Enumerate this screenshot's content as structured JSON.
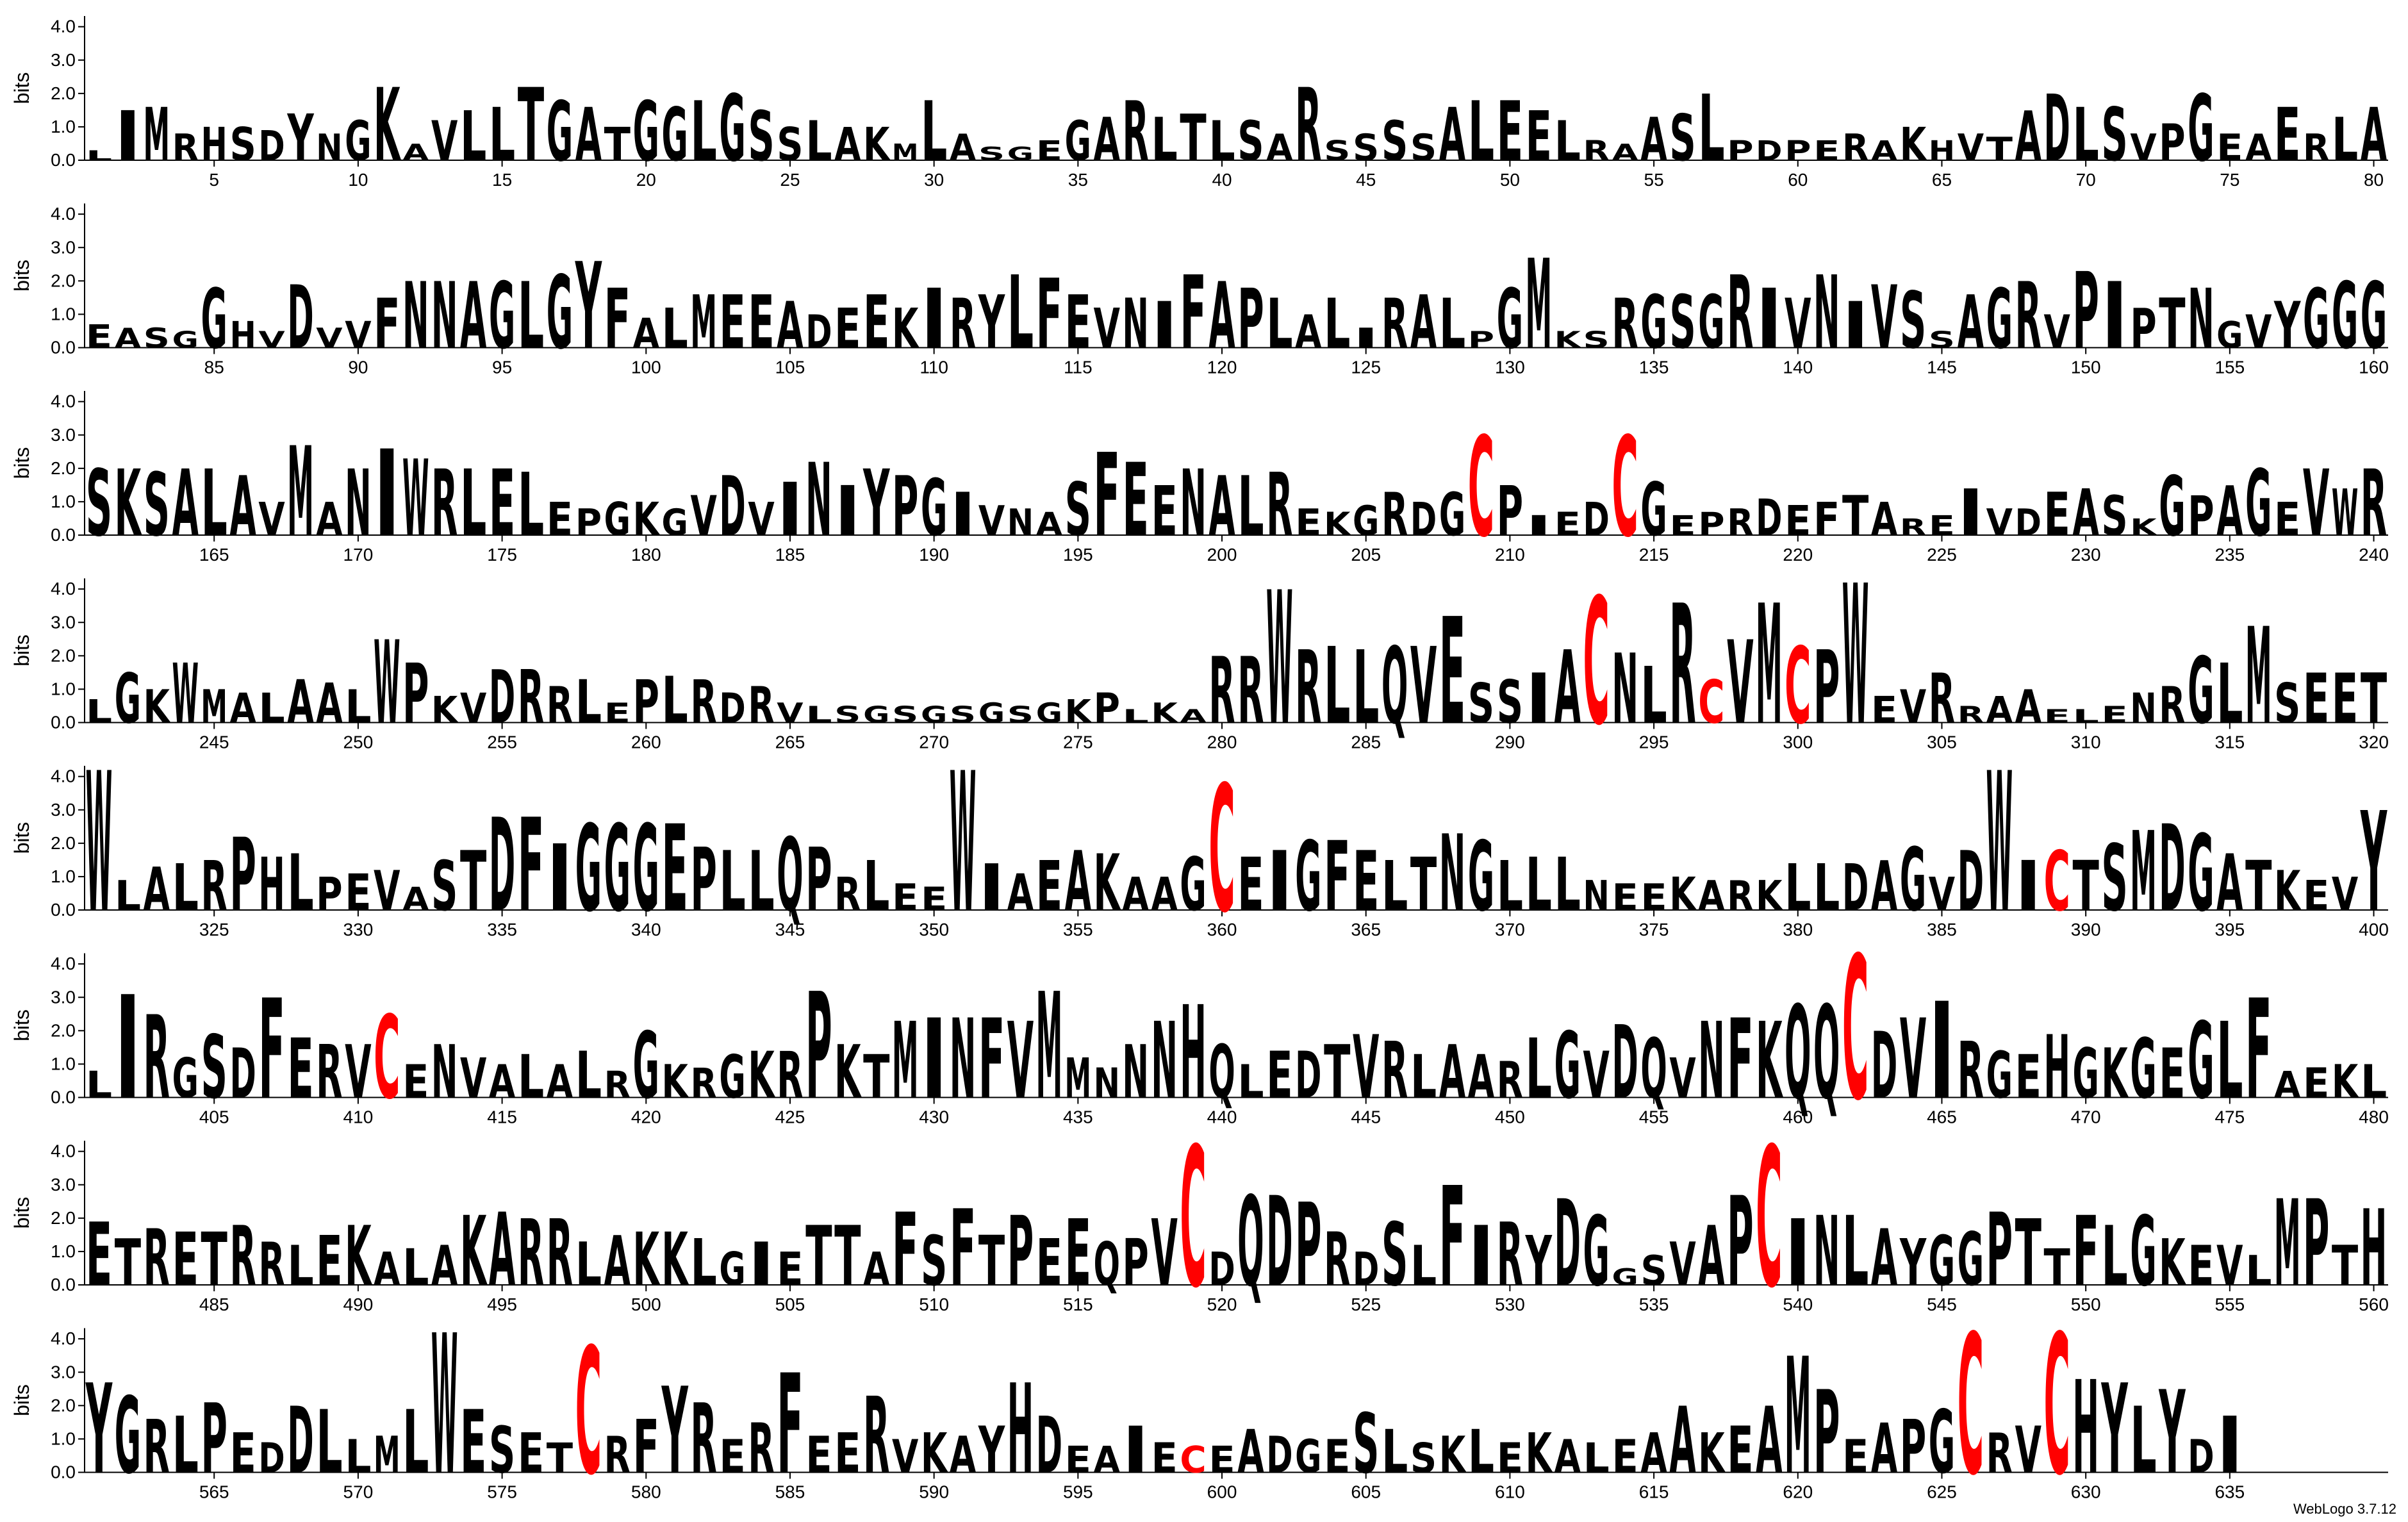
{
  "chart_data": {
    "type": "logo",
    "ylabel": "bits",
    "credit": "WebLogo 3.7.12",
    "ylim": [
      0,
      4.32
    ],
    "yticks": [
      {
        "value": 0,
        "label": "0.0"
      },
      {
        "value": 1,
        "label": "1.0"
      },
      {
        "value": 2,
        "label": "2.0"
      },
      {
        "value": 3,
        "label": "3.0"
      },
      {
        "value": 4,
        "label": "4.0"
      }
    ],
    "color": "#000000",
    "letter_colors": {
      "C": "#ff0000"
    },
    "rows": [
      {
        "xlim": [
          0.5,
          80.5
        ],
        "xticks": [
          5,
          10,
          15,
          20,
          25,
          30,
          35,
          40,
          45,
          50,
          55,
          60,
          65,
          70,
          75,
          80
        ],
        "letters": "LIMRHSDYNGKAVLLTGATGGLGSSLAKMLASGEGARLTLSARSSSSALEELRAASLPDPERAKHVTADLSVPGEAERLA",
        "heights": [
          0.3,
          1.5,
          1.6,
          0.8,
          1.0,
          1.0,
          0.9,
          1.4,
          0.8,
          1.2,
          2.2,
          0.5,
          1.2,
          1.5,
          1.6,
          2.2,
          1.8,
          1.6,
          1.0,
          1.8,
          1.6,
          1.8,
          2.0,
          1.5,
          1.0,
          1.2,
          1.0,
          1.0,
          0.5,
          1.8,
          0.8,
          0.4,
          0.4,
          0.6,
          1.2,
          1.3,
          1.8,
          1.3,
          1.4,
          1.2,
          1.2,
          0.8,
          2.2,
          0.6,
          0.8,
          1.2,
          0.8,
          1.6,
          1.8,
          1.8,
          1.5,
          1.2,
          0.6,
          0.5,
          1.3,
          1.4,
          2.0,
          0.6,
          0.6,
          0.6,
          0.6,
          0.8,
          0.6,
          1.0,
          0.6,
          0.8,
          0.7,
          1.5,
          2.0,
          1.6,
          1.6,
          0.8,
          1.1,
          2.0,
          0.8,
          0.8,
          1.6,
          0.8,
          1.3,
          1.6
        ]
      },
      {
        "xlim": [
          80.5,
          160.5
        ],
        "xticks": [
          85,
          90,
          95,
          100,
          105,
          110,
          115,
          120,
          125,
          130,
          135,
          140,
          145,
          150,
          155,
          160
        ],
        "letters": "EASGGHVDVVFNNAGLGYFALMEEADEEKIRYLFEVNIFAPLALIRALPGMKSRGSGRIVNIVSSAGRVPIPTNGVYGGG",
        "heights": [
          0.7,
          0.6,
          0.6,
          0.5,
          1.8,
          0.8,
          0.5,
          1.9,
          0.6,
          0.8,
          1.5,
          2.0,
          2.0,
          2.0,
          2.0,
          2.0,
          2.2,
          2.6,
          1.8,
          0.9,
          1.2,
          1.6,
          1.6,
          1.6,
          1.4,
          1.0,
          1.2,
          1.6,
          1.2,
          1.8,
          1.5,
          1.6,
          2.2,
          2.1,
          1.6,
          1.2,
          1.5,
          1.4,
          2.2,
          2.0,
          1.8,
          1.5,
          1.0,
          1.5,
          0.6,
          1.5,
          1.6,
          1.5,
          0.5,
          1.8,
          2.7,
          0.5,
          0.5,
          1.5,
          1.6,
          1.6,
          1.6,
          2.2,
          1.8,
          1.5,
          2.2,
          1.4,
          1.9,
          1.7,
          0.5,
          1.6,
          1.8,
          2.0,
          1.0,
          2.3,
          2.0,
          1.2,
          1.5,
          1.8,
          0.8,
          1.0,
          1.4,
          1.8,
          2.0,
          2.0
        ]
      },
      {
        "xlim": [
          160.5,
          240.5
        ],
        "xticks": [
          165,
          170,
          175,
          180,
          185,
          190,
          195,
          200,
          205,
          210,
          215,
          220,
          225,
          230,
          235,
          240
        ],
        "letters": "SKSALAVMANIWRLELEPGKGVDVINIYPGIVNASFEENALREKGRDGCPIEDCGEPRDEFTAREIVDEASKGPAGEVWR",
        "heights": [
          2.0,
          2.0,
          1.9,
          2.0,
          2.0,
          1.8,
          1.0,
          2.7,
          1.0,
          2.0,
          2.6,
          2.3,
          2.0,
          2.0,
          2.0,
          1.9,
          1.0,
          0.8,
          1.0,
          1.0,
          0.8,
          1.2,
          1.8,
          1.0,
          1.6,
          2.2,
          1.5,
          2.0,
          1.8,
          1.7,
          1.3,
          0.9,
          0.8,
          0.7,
          1.6,
          2.5,
          2.2,
          1.5,
          2.0,
          1.8,
          1.8,
          1.9,
          0.8,
          0.7,
          0.9,
          1.3,
          1.0,
          1.3,
          3.0,
          1.5,
          0.6,
          0.7,
          1.0,
          3.0,
          1.6,
          0.6,
          0.7,
          0.8,
          1.1,
          0.9,
          1.0,
          1.2,
          1.0,
          0.5,
          0.6,
          1.4,
          0.8,
          0.8,
          1.3,
          1.4,
          1.2,
          0.5,
          1.8,
          1.2,
          1.5,
          2.0,
          1.0,
          2.0,
          1.4,
          2.0
        ]
      },
      {
        "xlim": [
          240.5,
          320.5
        ],
        "xticks": [
          245,
          250,
          255,
          260,
          265,
          270,
          275,
          280,
          285,
          290,
          295,
          300,
          305,
          310,
          315,
          320
        ],
        "letters": "LGKWMALAALWPKVDRRLEPLRDRVLSGSGSGSGKPLKARRWRLLQVESSIACNLRCVMCPWEVRRAAELENRGLMSEET",
        "heights": [
          0.7,
          1.5,
          1.0,
          1.8,
          1.0,
          0.9,
          0.9,
          1.3,
          1.2,
          1.0,
          2.5,
          1.8,
          0.8,
          0.9,
          1.6,
          1.6,
          1.1,
          1.3,
          0.6,
          1.3,
          1.4,
          1.3,
          0.9,
          1.1,
          0.6,
          0.5,
          0.5,
          0.5,
          0.5,
          0.5,
          0.5,
          0.6,
          0.5,
          0.6,
          0.7,
          0.9,
          0.4,
          0.6,
          0.4,
          2.0,
          2.0,
          4.0,
          2.2,
          2.3,
          2.2,
          2.3,
          2.3,
          3.2,
          1.2,
          1.3,
          1.5,
          2.2,
          3.8,
          2.1,
          1.7,
          3.6,
          1.3,
          2.5,
          3.6,
          2.3,
          2.2,
          4.2,
          0.8,
          1.0,
          1.5,
          0.5,
          0.8,
          1.0,
          0.4,
          0.4,
          0.5,
          0.9,
          1.1,
          2.0,
          1.8,
          2.9,
          1.2,
          1.5,
          1.5,
          1.5
        ]
      },
      {
        "xlim": [
          320.5,
          400.5
        ],
        "xticks": [
          325,
          330,
          335,
          340,
          345,
          350,
          355,
          360,
          365,
          370,
          375,
          380,
          385,
          390,
          395,
          400
        ],
        "letters": "WLALRPHLPEVASTDFIGGGEPLLQPRLEEWIAEAKAAGCEIGFELTNGLLLNEEKARKLLDAGVDWICTSMDGATKEVY",
        "heights": [
          4.2,
          0.9,
          1.3,
          1.4,
          1.5,
          2.2,
          1.6,
          1.7,
          1.0,
          1.1,
          1.2,
          0.7,
          1.5,
          1.8,
          2.8,
          2.8,
          2.0,
          2.6,
          2.6,
          2.6,
          2.6,
          1.9,
          1.8,
          1.8,
          2.2,
          1.9,
          1.0,
          1.5,
          0.8,
          0.7,
          4.2,
          1.4,
          1.1,
          1.5,
          1.8,
          1.7,
          1.0,
          1.0,
          1.6,
          3.8,
          1.6,
          1.8,
          2.1,
          2.1,
          1.8,
          1.5,
          1.6,
          2.3,
          2.1,
          1.5,
          1.6,
          1.6,
          0.9,
          0.8,
          0.8,
          1.0,
          0.9,
          0.9,
          0.9,
          1.4,
          1.4,
          1.4,
          1.5,
          1.9,
          1.0,
          1.8,
          4.2,
          1.5,
          1.8,
          1.5,
          2.0,
          2.4,
          2.6,
          2.3,
          1.7,
          1.5,
          1.2,
          0.9,
          1.0,
          3.0
        ]
      },
      {
        "xlim": [
          400.5,
          480.5
        ],
        "xticks": [
          405,
          410,
          415,
          420,
          425,
          430,
          435,
          440,
          445,
          450,
          455,
          460,
          465,
          470,
          475,
          480
        ],
        "letters": "LIRGSDFERVCENVALALRGKRGKRPKTMINFVMMNNNHQLEDTVRLAARLGVDQVNFKQQCDVIRGEHGKGEGLFAEKL",
        "heights": [
          0.8,
          3.1,
          2.5,
          1.2,
          1.9,
          1.5,
          3.0,
          1.8,
          1.6,
          1.6,
          2.5,
          1.0,
          1.6,
          1.2,
          1.0,
          1.3,
          1.0,
          1.4,
          0.8,
          2.0,
          1.0,
          0.9,
          1.3,
          1.4,
          1.4,
          3.2,
          1.6,
          1.3,
          2.3,
          2.4,
          2.4,
          2.4,
          2.3,
          3.2,
          1.2,
          0.9,
          1.6,
          2.3,
          2.8,
          1.6,
          1.0,
          1.4,
          1.4,
          1.6,
          1.9,
          1.7,
          1.3,
          1.6,
          1.3,
          1.1,
          1.8,
          2.0,
          1.4,
          2.2,
          1.8,
          1.2,
          2.3,
          2.4,
          2.3,
          2.8,
          2.8,
          4.3,
          2.0,
          2.4,
          2.9,
          1.7,
          1.4,
          1.3,
          1.9,
          1.5,
          1.5,
          1.8,
          1.5,
          2.3,
          2.3,
          3.0,
          0.8,
          0.9,
          1.0,
          1.0
        ]
      },
      {
        "xlim": [
          480.5,
          560.5
        ],
        "xticks": [
          485,
          490,
          495,
          500,
          505,
          510,
          515,
          520,
          525,
          530,
          535,
          540,
          545,
          550,
          555,
          560
        ],
        "letters": "ETRETRRLEKALAKARRLAKKLGIETTAFSFTPEEQPVCDQDPRDSLFIRYDGGSVAPCINLAYGGPTTFLGKEVLMPTH",
        "heights": [
          1.9,
          1.4,
          1.7,
          1.6,
          1.6,
          1.8,
          1.3,
          1.2,
          1.5,
          1.8,
          1.0,
          1.1,
          1.2,
          2.1,
          2.2,
          2.0,
          2.0,
          1.3,
          1.5,
          1.6,
          1.6,
          1.4,
          1.0,
          1.3,
          1.0,
          1.8,
          1.8,
          1.0,
          2.2,
          1.5,
          2.3,
          1.5,
          2.1,
          1.4,
          2.0,
          1.3,
          1.4,
          2.0,
          4.2,
          1.0,
          2.7,
          2.7,
          2.5,
          1.6,
          1.0,
          1.9,
          1.2,
          3.0,
          1.8,
          1.9,
          1.5,
          2.6,
          2.1,
          0.5,
          0.9,
          1.3,
          1.8,
          2.7,
          4.2,
          2.0,
          2.1,
          2.1,
          1.7,
          1.4,
          1.5,
          1.6,
          2.2,
          2.0,
          1.1,
          2.1,
          1.8,
          2.1,
          1.4,
          1.2,
          1.2,
          0.9,
          2.6,
          2.6,
          1.2,
          2.3
        ]
      },
      {
        "xlim": [
          560.5,
          640.5
        ],
        "xticks": [
          565,
          570,
          575,
          580,
          585,
          590,
          595,
          600,
          605,
          610,
          615,
          620,
          625,
          630,
          635
        ],
        "letters": "YGRLPEDDLLMLWESETCRFYRERFEERVKAYHDEAIECEADGESLSKLEKALEAAKEAMPEAPGCRVCHYLYDI",
        "heights": [
          2.7,
          2.3,
          1.6,
          1.7,
          2.1,
          1.2,
          0.9,
          2.0,
          1.9,
          1.0,
          1.1,
          1.9,
          4.2,
          1.9,
          1.4,
          1.2,
          0.9,
          3.8,
          1.1,
          1.6,
          2.6,
          2.1,
          1.0,
          1.5,
          3.0,
          1.1,
          1.2,
          2.3,
          1.0,
          1.2,
          1.1,
          1.4,
          2.7,
          1.7,
          0.8,
          0.8,
          1.4,
          0.9,
          0.8,
          0.8,
          1.3,
          1.1,
          1.0,
          1.0,
          1.8,
          1.3,
          0.9,
          1.1,
          1.3,
          0.9,
          1.2,
          1.0,
          0.9,
          1.0,
          1.2,
          2.0,
          1.2,
          1.4,
          2.0,
          3.5,
          2.5,
          1.0,
          1.5,
          1.6,
          1.9,
          4.2,
          1.2,
          1.4,
          4.2,
          2.8,
          2.7,
          2.0,
          2.5,
          1.0,
          1.7
        ]
      }
    ]
  }
}
